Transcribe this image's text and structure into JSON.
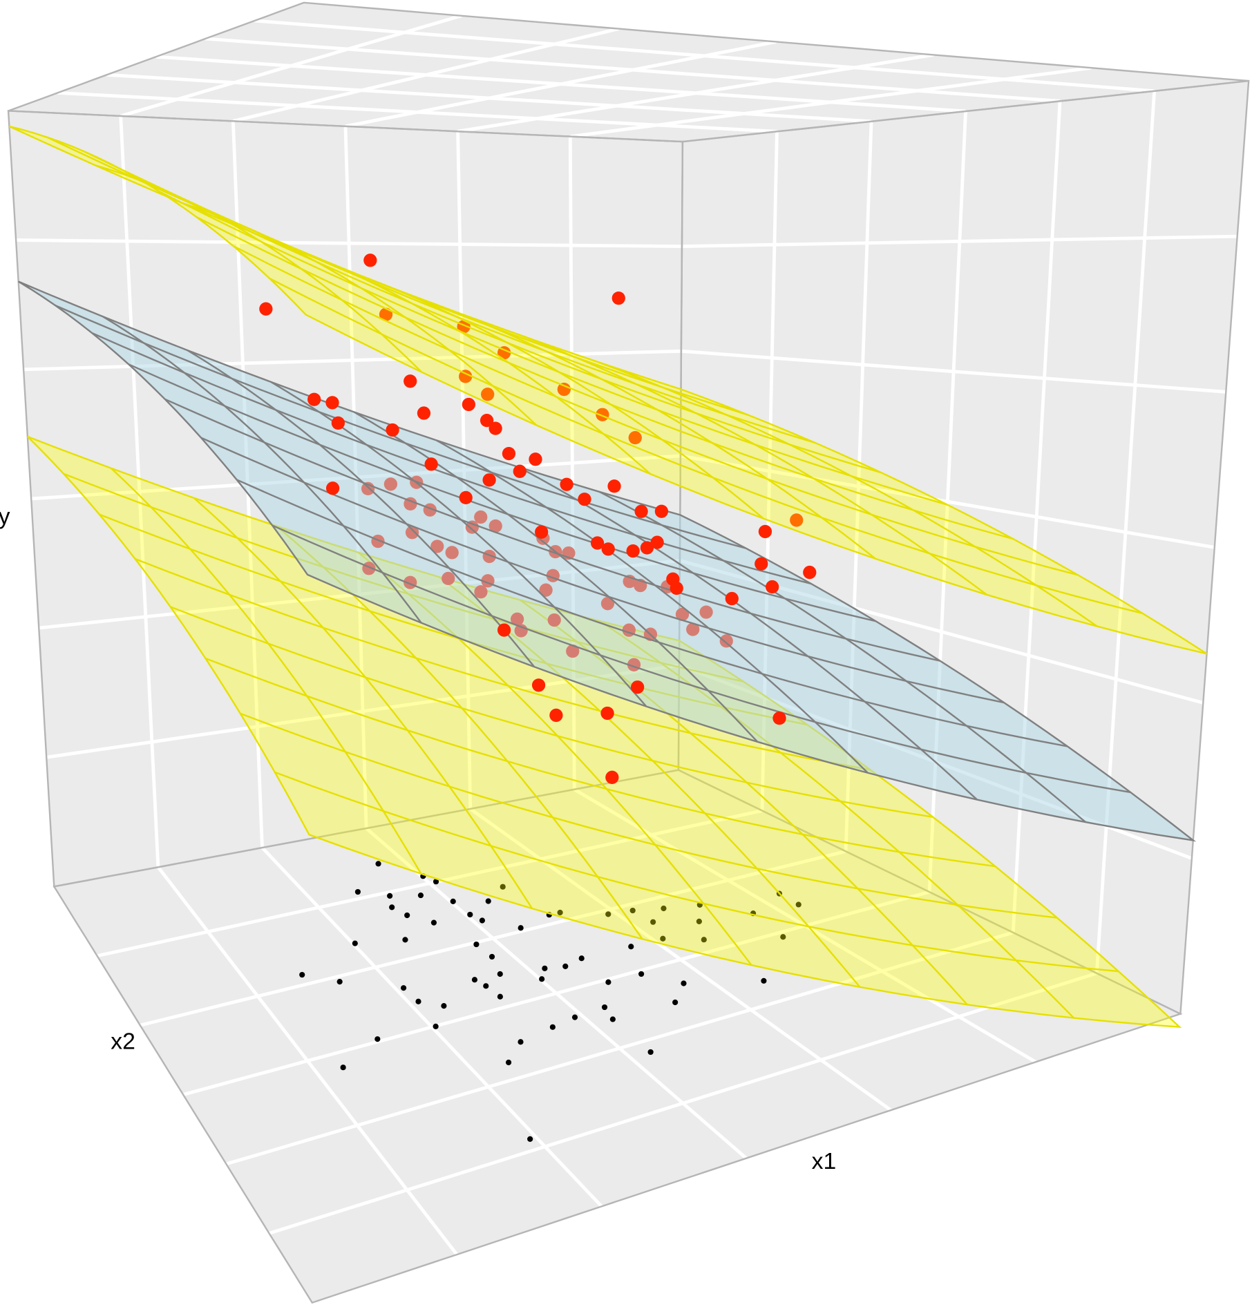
{
  "chart_data": {
    "type": "scatter3d",
    "xlabel": "x1",
    "ylabel": "x2",
    "zlabel": "y",
    "x1lim": [
      0,
      1
    ],
    "x2lim": [
      0,
      1
    ],
    "ylim": [
      0,
      1
    ],
    "grid": true,
    "series": [
      {
        "color": "#ff2200",
        "x1": [
          0.262,
          0.13,
          0.574,
          0.281,
          0.379,
          0.43,
          0.311,
          0.381,
          0.409,
          0.506,
          0.189,
          0.212,
          0.385,
          0.328,
          0.555,
          0.219,
          0.408,
          0.419,
          0.288,
          0.597,
          0.436,
          0.47,
          0.337,
          0.45,
          0.411,
          0.51,
          0.571,
          0.211,
          0.381,
          0.533,
          0.606,
          0.632,
          0.766,
          0.806,
          0.478,
          0.55,
          0.564,
          0.596,
          0.627,
          0.614,
          0.762,
          0.825,
          0.777,
          0.648,
          0.653,
          0.725,
          0.43,
          0.475,
          0.604,
          0.498,
          0.565,
          0.572,
          0.791
        ],
        "x2": [
          0.5,
          0.5,
          0.5,
          0.5,
          0.5,
          0.5,
          0.5,
          0.5,
          0.5,
          0.5,
          0.5,
          0.5,
          0.5,
          0.5,
          0.5,
          0.5,
          0.5,
          0.5,
          0.5,
          0.5,
          0.5,
          0.5,
          0.5,
          0.5,
          0.5,
          0.5,
          0.5,
          0.5,
          0.5,
          0.5,
          0.5,
          0.5,
          0.5,
          0.5,
          0.5,
          0.5,
          0.5,
          0.5,
          0.5,
          0.5,
          0.5,
          0.5,
          0.5,
          0.5,
          0.5,
          0.5,
          0.5,
          0.5,
          0.5,
          0.5,
          0.5,
          0.5,
          0.5
        ],
        "y": [
          0.805,
          0.756,
          0.764,
          0.749,
          0.735,
          0.706,
          0.679,
          0.682,
          0.662,
          0.664,
          0.664,
          0.66,
          0.652,
          0.645,
          0.634,
          0.639,
          0.634,
          0.625,
          0.629,
          0.606,
          0.597,
          0.589,
          0.591,
          0.577,
          0.57,
          0.559,
          0.553,
          0.573,
          0.553,
          0.541,
          0.522,
          0.52,
          0.485,
          0.495,
          0.509,
          0.491,
          0.483,
          0.478,
          0.485,
          0.48,
          0.447,
          0.43,
          0.418,
          0.441,
          0.43,
          0.41,
          0.407,
          0.342,
          0.323,
          0.306,
          0.299,
          0.226,
          0.259
        ]
      },
      {
        "color": "#ff2200",
        "x1": [
          0.256,
          0.285,
          0.318,
          0.31,
          0.335,
          0.4,
          0.389,
          0.419,
          0.268,
          0.312,
          0.344,
          0.363,
          0.411,
          0.256,
          0.309,
          0.358,
          0.4,
          0.409,
          0.48,
          0.496,
          0.513,
          0.493,
          0.484,
          0.564,
          0.592,
          0.606,
          0.641,
          0.661,
          0.692,
          0.675,
          0.719,
          0.495,
          0.447,
          0.452,
          0.519,
          0.592,
          0.62,
          0.599
        ],
        "x2": [
          0.5,
          0.5,
          0.5,
          0.5,
          0.5,
          0.5,
          0.5,
          0.5,
          0.5,
          0.5,
          0.5,
          0.5,
          0.5,
          0.5,
          0.5,
          0.5,
          0.5,
          0.5,
          0.5,
          0.5,
          0.5,
          0.5,
          0.5,
          0.5,
          0.5,
          0.5,
          0.5,
          0.5,
          0.5,
          0.5,
          0.5,
          0.5,
          0.5,
          0.5,
          0.5,
          0.5,
          0.5,
          0.5
        ],
        "y": [
          0.57,
          0.573,
          0.573,
          0.551,
          0.543,
          0.531,
          0.521,
          0.52,
          0.515,
          0.521,
          0.504,
          0.496,
          0.488,
          0.488,
          0.469,
          0.469,
          0.451,
          0.462,
          0.502,
          0.486,
          0.483,
          0.46,
          0.445,
          0.422,
          0.444,
          0.438,
          0.433,
          0.399,
          0.398,
          0.38,
          0.361,
          0.411,
          0.417,
          0.404,
          0.374,
          0.389,
          0.381,
          0.349
        ]
      }
    ],
    "floor_points": {
      "color": "#000000",
      "x1": [
        0.464,
        0.502,
        0.51,
        0.401,
        0.435,
        0.473,
        0.503,
        0.544,
        0.581,
        0.423,
        0.431,
        0.453,
        0.505,
        0.511,
        0.544,
        0.593,
        0.608,
        0.657,
        0.688,
        0.723,
        0.765,
        0.804,
        0.861,
        0.861,
        0.739,
        0.692,
        0.336,
        0.399,
        0.474,
        0.476,
        0.464,
        0.518,
        0.542,
        0.569,
        0.635,
        0.678,
        0.717,
        0.796,
        0.24,
        0.277,
        0.343,
        0.345,
        0.368,
        0.43,
        0.435,
        0.502,
        0.566,
        0.609,
        0.638,
        0.716,
        0.438,
        0.491,
        0.532,
        0.526,
        0.606,
        0.263,
        0.338,
        0.41,
        0.458,
        0.2,
        0.377,
        0.525,
        0.326
      ],
      "x2": [
        0.093,
        0.146,
        0.166,
        0.15,
        0.176,
        0.191,
        0.223,
        0.242,
        0.215,
        0.204,
        0.231,
        0.263,
        0.264,
        0.285,
        0.325,
        0.31,
        0.311,
        0.344,
        0.35,
        0.364,
        0.378,
        0.434,
        0.401,
        0.442,
        0.419,
        0.391,
        0.268,
        0.287,
        0.338,
        0.376,
        0.421,
        0.435,
        0.443,
        0.434,
        0.437,
        0.438,
        0.467,
        0.513,
        0.31,
        0.346,
        0.396,
        0.435,
        0.46,
        0.419,
        0.44,
        0.458,
        0.507,
        0.509,
        0.559,
        0.607,
        0.473,
        0.567,
        0.563,
        0.596,
        0.598,
        0.494,
        0.501,
        0.588,
        0.575,
        0.535,
        0.626,
        0.696,
        0.807
      ]
    },
    "surfaces": [
      {
        "color": "#ffff00",
        "intercept": 0.58,
        "slope_x1": -0.374,
        "slope_x2": -0.22
      },
      {
        "color": "#add8e6",
        "intercept": 0.78,
        "slope_x1": -0.374,
        "slope_x2": -0.22
      },
      {
        "color": "#ffff00",
        "intercept": 0.98,
        "slope_x1": -0.374,
        "slope_x2": -0.22
      }
    ]
  }
}
